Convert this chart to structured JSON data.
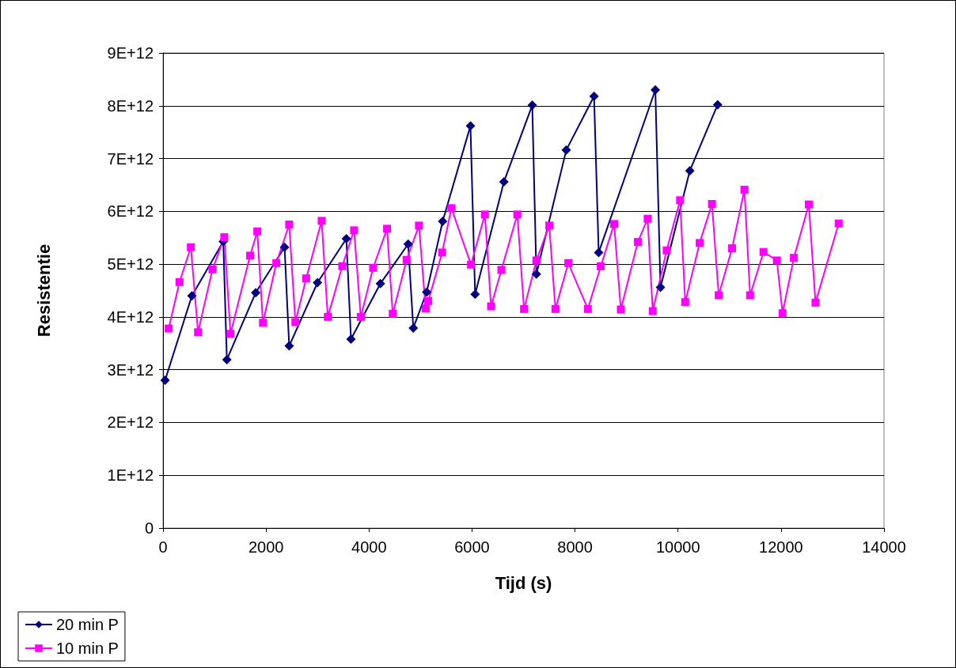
{
  "chart_data": {
    "type": "line",
    "xlabel": "Tijd (s)",
    "ylabel": "Resistentie",
    "xlim": [
      0,
      14000
    ],
    "xticks": [
      0,
      2000,
      4000,
      6000,
      8000,
      10000,
      12000,
      14000
    ],
    "ylim": [
      0,
      9000000000000.0
    ],
    "yticks": [
      0,
      {
        "value": 1000000000000.0,
        "label": "1E+12"
      },
      {
        "value": 2000000000000.0,
        "label": "2E+12"
      },
      {
        "value": 3000000000000.0,
        "label": "3E+12"
      },
      {
        "value": 4000000000000.0,
        "label": "4E+12"
      },
      {
        "value": 5000000000000.0,
        "label": "5E+12"
      },
      {
        "value": 6000000000000.0,
        "label": "6E+12"
      },
      {
        "value": 7000000000000.0,
        "label": "7E+12"
      },
      {
        "value": 8000000000000.0,
        "label": "8E+12"
      },
      {
        "value": 9000000000000.0,
        "label": "9E+12"
      }
    ],
    "grid": "y",
    "legend": "bottom left",
    "series": [
      {
        "name": "20 min P",
        "color": "#000080",
        "marker": "diamond",
        "x": [
          40,
          560,
          1170,
          1240,
          1800,
          2360,
          2450,
          3000,
          3560,
          3650,
          4220,
          4760,
          4860,
          5120,
          5430,
          5970,
          6060,
          6620,
          7170,
          7250,
          7830,
          8370,
          8460,
          9560,
          9660,
          10230,
          10770
        ],
        "values": [
          2800000000000.0,
          4400000000000.0,
          5430000000000.0,
          3190000000000.0,
          4460000000000.0,
          5320000000000.0,
          3450000000000.0,
          4650000000000.0,
          5480000000000.0,
          3580000000000.0,
          4630000000000.0,
          5380000000000.0,
          3790000000000.0,
          4470000000000.0,
          5810000000000.0,
          7620000000000.0,
          4430000000000.0,
          6560000000000.0,
          8010000000000.0,
          4810000000000.0,
          7160000000000.0,
          8180000000000.0,
          5220000000000.0,
          8300000000000.0,
          4560000000000.0,
          6770000000000.0,
          8020000000000.0
        ]
      },
      {
        "name": "10 min P",
        "color": "#ff00ff",
        "marker": "square",
        "x": [
          110,
          320,
          540,
          680,
          960,
          1190,
          1310,
          1690,
          1830,
          1940,
          2200,
          2450,
          2570,
          2780,
          3080,
          3200,
          3480,
          3710,
          3840,
          4080,
          4350,
          4460,
          4730,
          4970,
          5100,
          5150,
          5420,
          5600,
          5980,
          6250,
          6370,
          6570,
          6880,
          7010,
          7250,
          7500,
          7620,
          7870,
          8250,
          8500,
          8760,
          8890,
          9220,
          9410,
          9510,
          9780,
          10040,
          10140,
          10420,
          10660,
          10790,
          11050,
          11290,
          11400,
          11660,
          11920,
          12030,
          12250,
          12540,
          12670,
          13120
        ],
        "values": [
          3780000000000.0,
          4660000000000.0,
          5320000000000.0,
          3710000000000.0,
          4900000000000.0,
          5510000000000.0,
          3680000000000.0,
          5160000000000.0,
          5620000000000.0,
          3890000000000.0,
          5020000000000.0,
          5750000000000.0,
          3900000000000.0,
          4730000000000.0,
          5820000000000.0,
          4000000000000.0,
          4960000000000.0,
          5640000000000.0,
          4000000000000.0,
          4930000000000.0,
          5670000000000.0,
          4060000000000.0,
          5080000000000.0,
          5730000000000.0,
          4160000000000.0,
          4300000000000.0,
          5220000000000.0,
          6060000000000.0,
          4990000000000.0,
          5940000000000.0,
          4200000000000.0,
          4890000000000.0,
          5940000000000.0,
          4150000000000.0,
          5070000000000.0,
          5730000000000.0,
          4150000000000.0,
          5020000000000.0,
          4150000000000.0,
          4960000000000.0,
          5760000000000.0,
          4140000000000.0,
          5420000000000.0,
          5860000000000.0,
          4110000000000.0,
          5260000000000.0,
          6210000000000.0,
          4280000000000.0,
          5400000000000.0,
          6140000000000.0,
          4410000000000.0,
          5300000000000.0,
          6410000000000.0,
          4410000000000.0,
          5230000000000.0,
          5070000000000.0,
          4070000000000.0,
          5120000000000.0,
          6130000000000.0,
          4270000000000.0,
          5770000000000.0
        ]
      }
    ]
  }
}
